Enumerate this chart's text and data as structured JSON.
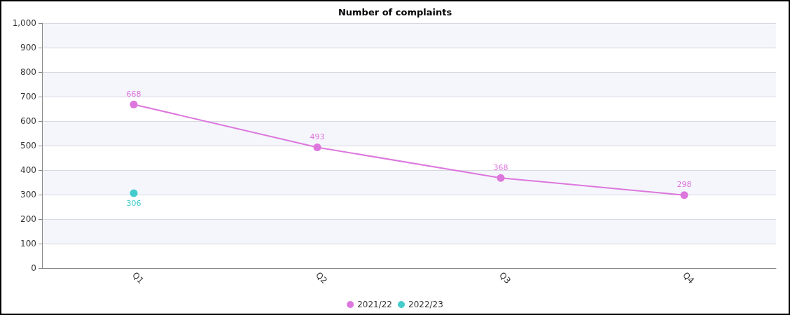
{
  "chart_data": {
    "type": "line",
    "title": "Number of complaints",
    "categories": [
      "Q1",
      "Q2",
      "Q3",
      "Q4"
    ],
    "series": [
      {
        "name": "2021/22",
        "color": "#dd77dd",
        "values": [
          668,
          493,
          368,
          298
        ]
      },
      {
        "name": "2022/23",
        "color": "#44cccc",
        "values": [
          306,
          null,
          null,
          null
        ]
      }
    ],
    "ylim": [
      0,
      1000
    ],
    "yticks": [
      0,
      100,
      200,
      300,
      400,
      500,
      600,
      700,
      800,
      900,
      {
        "value": 1000,
        "label": "1,000"
      }
    ],
    "grid": "y",
    "legend": "bottom",
    "marker": "circle",
    "line_style": "solid",
    "data_labels": true
  }
}
